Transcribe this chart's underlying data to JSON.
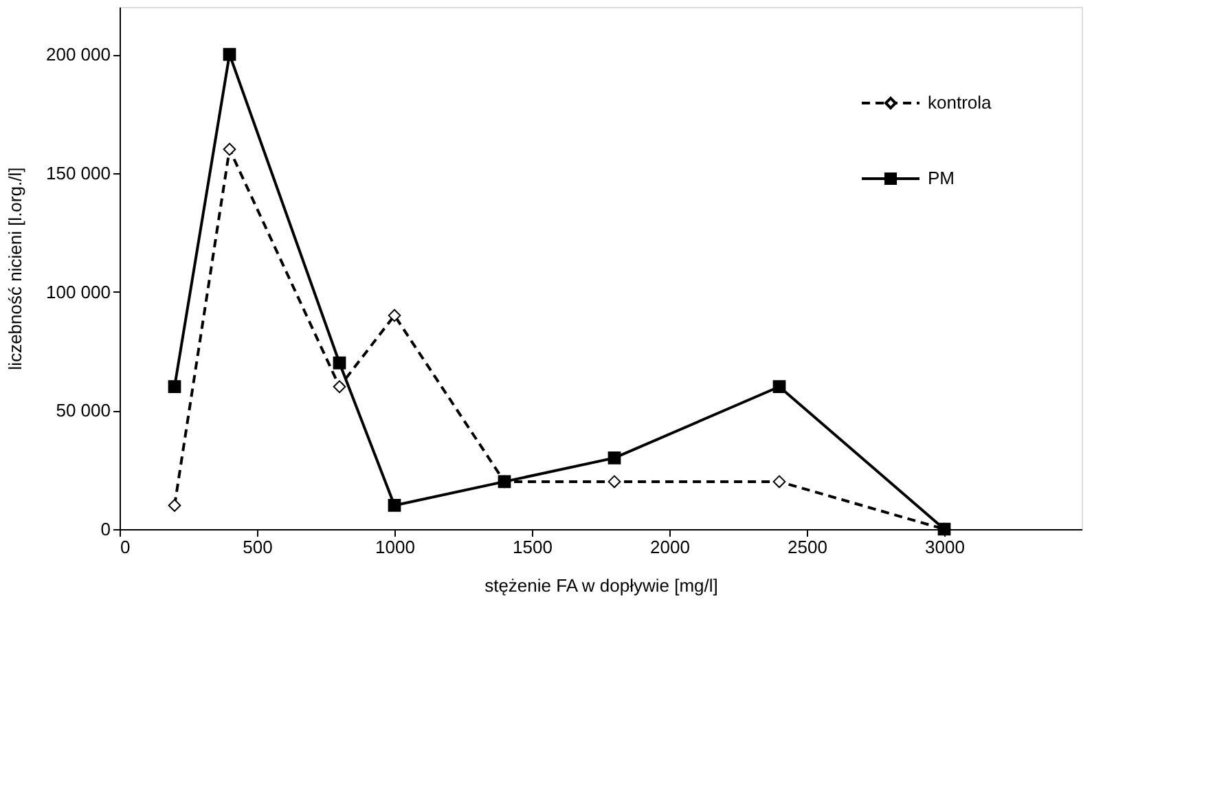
{
  "chart_data": {
    "type": "line",
    "xlabel": "stężenie FA w dopływie [mg/l]",
    "ylabel": "liczebność nicieni [l.org./l]",
    "x": [
      200,
      400,
      800,
      1000,
      1400,
      1800,
      2400,
      3000
    ],
    "series": [
      {
        "name": "kontrola",
        "color": "#000000",
        "marker": "diamond",
        "line_style": "dashed",
        "values": [
          10000,
          160000,
          60000,
          90000,
          20000,
          20000,
          20000,
          0
        ]
      },
      {
        "name": "PM",
        "color": "#000000",
        "marker": "square",
        "line_style": "solid",
        "values": [
          60000,
          200000,
          70000,
          10000,
          20000,
          30000,
          60000,
          0
        ]
      }
    ],
    "xlim": [
      0,
      3500
    ],
    "xticks": [
      0,
      500,
      1000,
      1500,
      2000,
      2500,
      3000
    ],
    "ylim": [
      0,
      220000
    ],
    "yticks": [
      0,
      {
        "value": 50000,
        "label": "50 000"
      },
      {
        "value": 100000,
        "label": "100 000"
      },
      {
        "value": 150000,
        "label": "150 000"
      },
      {
        "value": 200000,
        "label": "200 000"
      }
    ],
    "grid": false,
    "legend": "top right"
  }
}
